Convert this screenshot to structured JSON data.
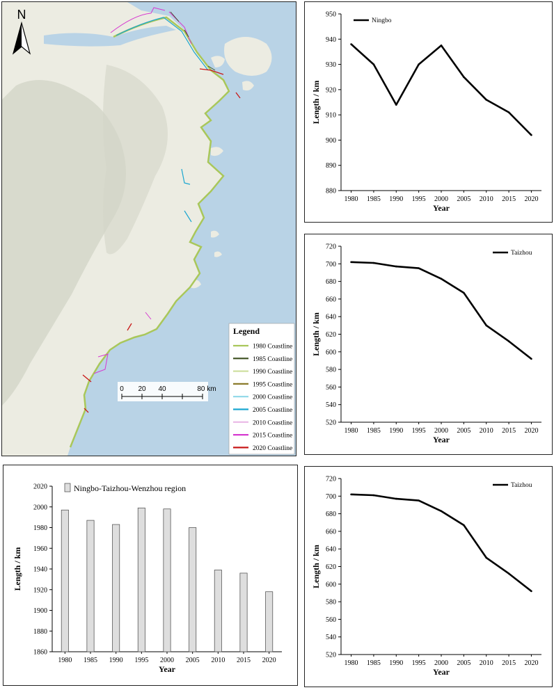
{
  "map": {
    "north_label": "N",
    "legend_title": "Legend",
    "legend_items": [
      {
        "label": "1980 Coastline",
        "color": "#a9c75a"
      },
      {
        "label": "1985 Coastline",
        "color": "#3c4f1e"
      },
      {
        "label": "1990 Coastline",
        "color": "#cfe0a0"
      },
      {
        "label": "1995 Coastline",
        "color": "#8a7a2a"
      },
      {
        "label": "2000 Coastline",
        "color": "#8fd8e8"
      },
      {
        "label": "2005 Coastline",
        "color": "#1aa6d0"
      },
      {
        "label": "2010 Coastline",
        "color": "#e9b8e6"
      },
      {
        "label": "2015 Coastline",
        "color": "#d63ad0"
      },
      {
        "label": "2020 Coastline",
        "color": "#c81818"
      }
    ],
    "scale_ticks": [
      "0",
      "20",
      "40",
      "80 km"
    ],
    "colors": {
      "sea": "#b9d3e6",
      "land": "#ecece2",
      "hills": "#d3d6c8"
    }
  },
  "chart_data": [
    {
      "type": "line",
      "title": "",
      "legend": "Ningbo",
      "xlabel": "Year",
      "ylabel": "Length / km",
      "x": [
        1980,
        1985,
        1990,
        1995,
        2000,
        2005,
        2010,
        2015,
        2020
      ],
      "series": [
        {
          "name": "Ningbo",
          "values": [
            938,
            930,
            914,
            930,
            937.5,
            925,
            916,
            911,
            902
          ]
        }
      ],
      "ylim": [
        880,
        950
      ],
      "yticks": [
        880,
        890,
        900,
        910,
        920,
        930,
        940,
        950
      ],
      "legend_position": "top-left",
      "grid": false
    },
    {
      "type": "line",
      "title": "",
      "legend": "Taizhou",
      "xlabel": "Year",
      "ylabel": "Length / km",
      "x": [
        1980,
        1985,
        1990,
        1995,
        2000,
        2005,
        2010,
        2015,
        2020
      ],
      "series": [
        {
          "name": "Taizhou",
          "values": [
            702,
            701,
            697,
            695,
            683,
            667,
            630,
            612,
            592
          ]
        }
      ],
      "ylim": [
        520,
        720
      ],
      "yticks": [
        520,
        540,
        560,
        580,
        600,
        620,
        640,
        660,
        680,
        700,
        720
      ],
      "legend_position": "top-right",
      "grid": false
    },
    {
      "type": "bar",
      "title": "",
      "legend": "Ningbo-Taizhou-Wenzhou region",
      "xlabel": "Year",
      "ylabel": "Length / km",
      "categories": [
        "1980",
        "1985",
        "1990",
        "1995",
        "2000",
        "2005",
        "2010",
        "2015",
        "2020"
      ],
      "series": [
        {
          "name": "Ningbo-Taizhou-Wenzhou region",
          "values": [
            1997,
            1987,
            1983,
            1999,
            1998,
            1980,
            1939,
            1936,
            1918
          ]
        }
      ],
      "ylim": [
        1860,
        2020
      ],
      "yticks": [
        1860,
        1880,
        1900,
        1920,
        1940,
        1960,
        1980,
        2000,
        2020
      ],
      "legend_position": "top-left",
      "grid": false
    },
    {
      "type": "line",
      "title": "",
      "legend": "Taizhou",
      "xlabel": "Year",
      "ylabel": "Length / km",
      "x": [
        1980,
        1985,
        1990,
        1995,
        2000,
        2005,
        2010,
        2015,
        2020
      ],
      "series": [
        {
          "name": "Taizhou",
          "values": [
            702,
            701,
            697,
            695,
            683,
            667,
            630,
            612,
            592
          ]
        }
      ],
      "ylim": [
        520,
        720
      ],
      "yticks": [
        520,
        540,
        560,
        580,
        600,
        620,
        640,
        660,
        680,
        700,
        720
      ],
      "legend_position": "top-right",
      "grid": false
    }
  ]
}
